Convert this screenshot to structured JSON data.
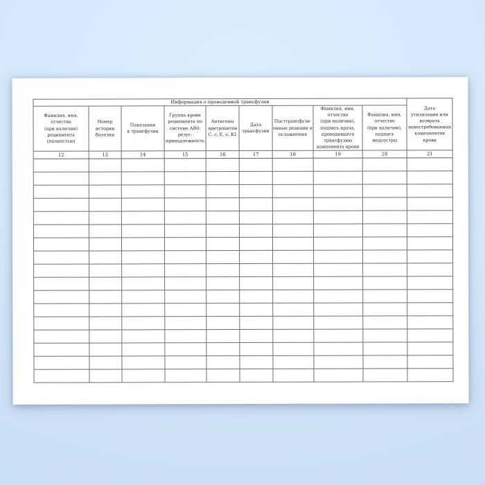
{
  "page": {
    "kind": "scanned-registry-form-page",
    "colors": {
      "background_top": "#dceefd",
      "background_bottom": "#c8dcf3",
      "paper": "#ffffff",
      "table_border": "#6e6e6e",
      "text": "#222222"
    }
  },
  "table": {
    "group_header": "Информация о проведенной трансфузии",
    "columns": [
      {
        "number": "12",
        "title": "Фамилия, имя, отчество\n(при наличии)\nреципиента\n(полностью)"
      },
      {
        "number": "13",
        "title": "Номер\nистории\nболезни"
      },
      {
        "number": "14",
        "title": "Показания\nк трансфузии"
      },
      {
        "number": "15",
        "title": "Группа крови\nреципиента по\nсистеме АВ0:\nрезус-\nпринадлежность"
      },
      {
        "number": "16",
        "title": "Антигены\nэритроцитов\nС, с, Е, е, К1"
      },
      {
        "number": "17",
        "title": "Дата\nтрансфузии"
      },
      {
        "number": "18",
        "title": "Посттрансфузи-\nонные реакции и\nосложнения"
      },
      {
        "number": "19",
        "title": "Фамилия, имя,\nотчество\n(при наличии),\nподпись врача,\nпроводившего\nтрансфузию\nкомпонента крови"
      },
      {
        "number": "20",
        "title": "Фамилия, имя,\nотчество\n(при наличии),\nподпись медсестры"
      },
      {
        "number": "21",
        "title": "Дата\nутилизации или\nвозврата\nневостребованных\nкомпонентов крови"
      }
    ],
    "empty_row_count": 17
  }
}
